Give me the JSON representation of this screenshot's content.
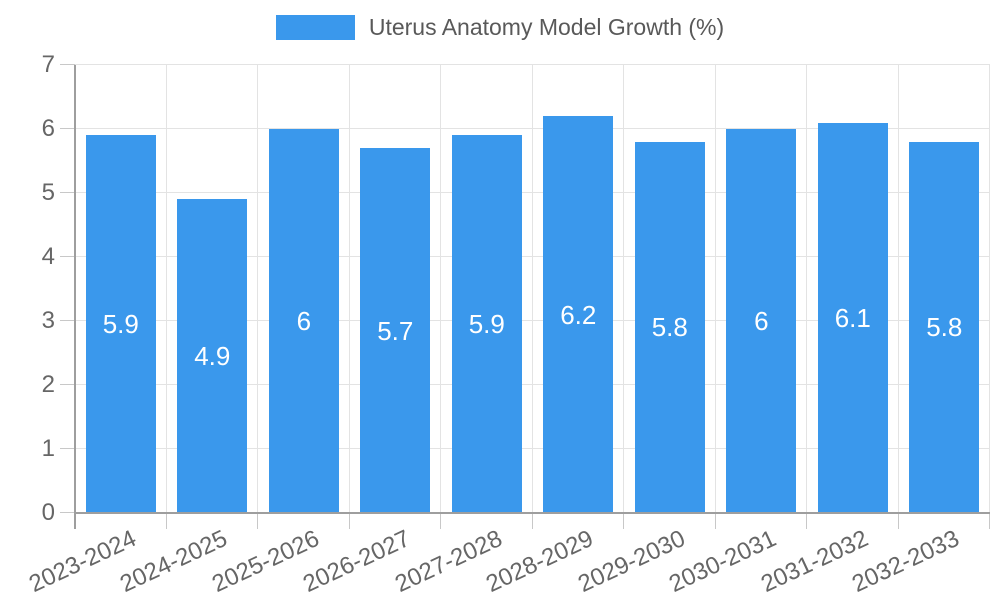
{
  "chart_data": {
    "type": "bar",
    "title": "Uterus Anatomy Model Growth (%)",
    "categories": [
      "2023-2024",
      "2024-2025",
      "2025-2026",
      "2026-2027",
      "2027-2028",
      "2028-2029",
      "2029-2030",
      "2030-2031",
      "2031-2032",
      "2032-2033"
    ],
    "values": [
      5.9,
      4.9,
      6,
      5.7,
      5.9,
      6.2,
      5.8,
      6,
      6.1,
      5.8
    ],
    "bar_labels": [
      "5.9",
      "4.9",
      "6",
      "5.7",
      "5.9",
      "6.2",
      "5.8",
      "6",
      "6.1",
      "5.8"
    ],
    "xlabel": "",
    "ylabel": "",
    "ylim": [
      0,
      7
    ],
    "ytick_step": 1,
    "ytick_labels": [
      "0",
      "1",
      "2",
      "3",
      "4",
      "5",
      "6",
      "7"
    ],
    "grid": true,
    "legend_position": "top-center",
    "value_label_position": "bar-center",
    "colors": {
      "bar": "#3a98ec",
      "grid": "#e3e3e3",
      "tick": "#c8c8c8",
      "axis": "#9e9e9e",
      "tick_text": "#666666",
      "bar_label_text": "#ffffff",
      "legend_text": "#595959"
    }
  }
}
